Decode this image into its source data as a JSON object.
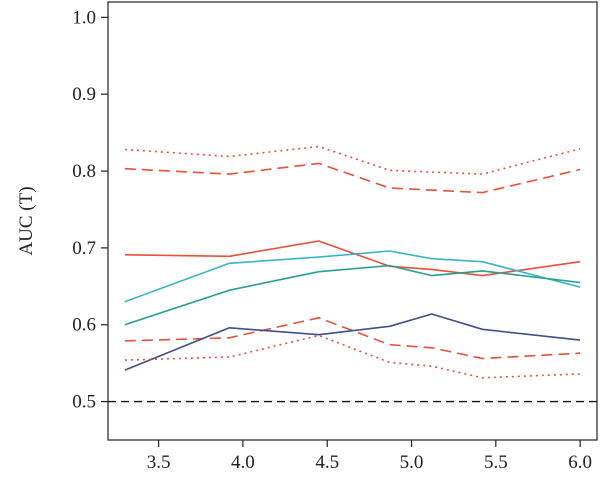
{
  "chart_data": {
    "type": "line",
    "title": "",
    "xlabel": "",
    "ylabel": "AUC (T)",
    "xlim": [
      3.2,
      6.1
    ],
    "ylim": [
      0.45,
      1.02
    ],
    "xticks": [
      "3.5",
      "4.0",
      "4.5",
      "5.0",
      "5.5",
      "6.0"
    ],
    "yticks": [
      "0.5",
      "0.6",
      "0.7",
      "0.8",
      "0.9",
      "1.0"
    ],
    "grid": false,
    "legend": "none",
    "reference_line": {
      "y": 0.5,
      "style": "dashed",
      "color": "#111111"
    },
    "series": [
      {
        "color": "#e8503a",
        "style": "dotted",
        "x": [
          3.3,
          3.92,
          4.45,
          4.87,
          5.42,
          6.0
        ],
        "y": [
          0.828,
          0.819,
          0.832,
          0.801,
          0.796,
          0.829
        ]
      },
      {
        "color": "#e8503a",
        "style": "dashed",
        "x": [
          3.3,
          3.92,
          4.45,
          4.87,
          5.42,
          6.0
        ],
        "y": [
          0.803,
          0.796,
          0.81,
          0.778,
          0.772,
          0.802
        ]
      },
      {
        "color": "#e8503a",
        "style": "solid",
        "x": [
          3.3,
          3.92,
          4.45,
          4.87,
          5.12,
          5.42,
          6.0
        ],
        "y": [
          0.691,
          0.689,
          0.709,
          0.676,
          0.672,
          0.664,
          0.682
        ]
      },
      {
        "color": "#3ab4c8",
        "style": "solid",
        "x": [
          3.3,
          3.92,
          4.45,
          4.87,
          5.12,
          5.42,
          6.0
        ],
        "y": [
          0.63,
          0.68,
          0.688,
          0.696,
          0.686,
          0.682,
          0.649
        ]
      },
      {
        "color": "#25a08a",
        "style": "solid",
        "x": [
          3.3,
          3.92,
          4.45,
          4.87,
          5.12,
          5.42,
          6.0
        ],
        "y": [
          0.6,
          0.645,
          0.669,
          0.677,
          0.664,
          0.67,
          0.655
        ]
      },
      {
        "color": "#e8503a",
        "style": "dashed",
        "x": [
          3.3,
          3.92,
          4.45,
          4.87,
          5.12,
          5.42,
          6.0
        ],
        "y": [
          0.579,
          0.583,
          0.609,
          0.574,
          0.57,
          0.556,
          0.563
        ]
      },
      {
        "color": "#3f4f8a",
        "style": "solid",
        "x": [
          3.3,
          3.92,
          4.45,
          4.87,
          5.12,
          5.42,
          6.0
        ],
        "y": [
          0.541,
          0.596,
          0.587,
          0.598,
          0.614,
          0.594,
          0.58
        ]
      },
      {
        "color": "#e8503a",
        "style": "dotted",
        "x": [
          3.3,
          3.92,
          4.45,
          4.87,
          5.12,
          5.42,
          6.0
        ],
        "y": [
          0.554,
          0.558,
          0.586,
          0.551,
          0.546,
          0.531,
          0.536
        ]
      }
    ]
  }
}
